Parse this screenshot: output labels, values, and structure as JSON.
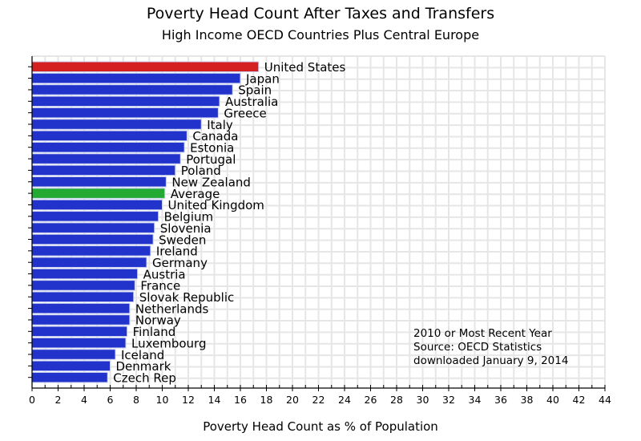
{
  "chart_data": {
    "type": "bar",
    "orientation": "horizontal",
    "title": "Poverty Head Count After Taxes and Transfers",
    "subtitle": "High Income OECD Countries Plus Central Europe",
    "xlabel": "Poverty Head Count as % of Population",
    "ylabel": "",
    "xlim": [
      0,
      44
    ],
    "xticks": [
      0,
      2,
      4,
      6,
      8,
      10,
      12,
      14,
      16,
      18,
      20,
      22,
      24,
      26,
      28,
      30,
      32,
      34,
      36,
      38,
      40,
      42,
      44
    ],
    "grid": true,
    "labels_position": "end-of-bar",
    "categories": [
      "United States",
      "Japan",
      "Spain",
      "Australia",
      "Greece",
      "Italy",
      "Canada",
      "Estonia",
      "Portugal",
      "Poland",
      "New Zealand",
      "Average",
      "United Kingdom",
      "Belgium",
      "Slovenia",
      "Sweden",
      "Ireland",
      "Germany",
      "Austria",
      "France",
      "Slovak Republic",
      "Netherlands",
      "Norway",
      "Finland",
      "Luxembourg",
      "Iceland",
      "Denmark",
      "Czech Rep"
    ],
    "values": [
      17.4,
      16.0,
      15.4,
      14.4,
      14.3,
      13.0,
      11.9,
      11.7,
      11.4,
      11.0,
      10.3,
      10.2,
      10.0,
      9.7,
      9.4,
      9.3,
      9.1,
      8.8,
      8.1,
      7.9,
      7.8,
      7.5,
      7.5,
      7.3,
      7.2,
      6.4,
      6.0,
      5.8
    ],
    "highlight": {
      "United States": "#d42020",
      "Average": "#22aa33"
    },
    "default_color": "#2233cc",
    "annotation": [
      "2010 or Most Recent Year",
      "Source:  OECD Statistics",
      "downloaded January 9, 2014"
    ]
  },
  "colors": {
    "bar_default": "#2233cc",
    "bar_us": "#d42020",
    "bar_average": "#22aa33",
    "grid": "#e6e6e6"
  }
}
